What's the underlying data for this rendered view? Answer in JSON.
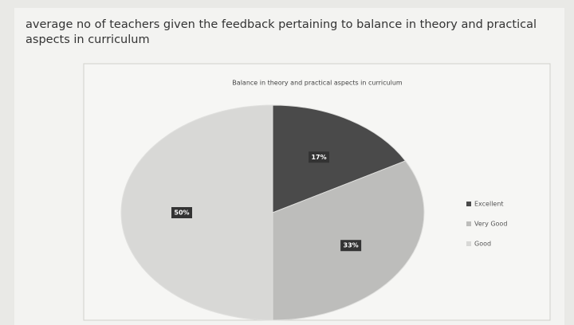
{
  "heading": "average no of teachers given the feedback pertaining to balance in theory and practical aspects in curriculum",
  "chart_data": {
    "type": "pie",
    "title": "Balance in theory and practical aspects in curriculum",
    "categories": [
      "Excellent",
      "Very Good",
      "Good"
    ],
    "values": [
      17,
      33,
      50
    ],
    "value_labels": [
      "17%",
      "33%",
      "50%"
    ],
    "colors": [
      "#4a4a4a",
      "#bdbdbb",
      "#d8d8d6"
    ],
    "legend": "right"
  }
}
